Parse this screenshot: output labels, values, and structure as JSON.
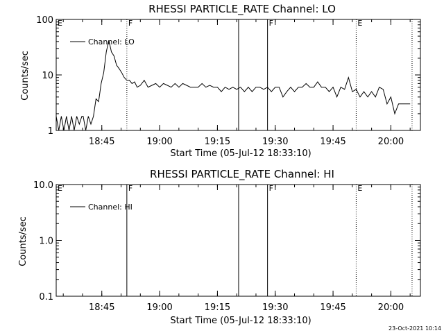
{
  "timestamp": "23-Oct-2021 10:14",
  "chart_data": [
    {
      "type": "line",
      "title": "RHESSI PARTICLE_RATE Channel: LO",
      "xlabel": "Start Time (05-Jul-12 18:33:10)",
      "ylabel": "Counts/sec",
      "yscale": "log",
      "ylim": [
        1,
        100
      ],
      "xlim": [
        "18:33:10",
        "20:07:40"
      ],
      "xticks": [
        "18:45",
        "19:00",
        "19:15",
        "19:30",
        "19:45",
        "20:00"
      ],
      "yticks": [
        "1",
        "10",
        "100"
      ],
      "legend": "top-left",
      "series": [
        {
          "name": "Channel: LO",
          "x": [
            "18:33:10",
            "18:33:50",
            "18:34:30",
            "18:35:10",
            "18:35:50",
            "18:36:30",
            "18:37:10",
            "18:37:50",
            "18:38:30",
            "18:39:10",
            "18:39:50",
            "18:40:10",
            "18:40:50",
            "18:41:30",
            "18:42:10",
            "18:42:50",
            "18:43:30",
            "18:44:10",
            "18:44:50",
            "18:45:30",
            "18:46:10",
            "18:46:50",
            "18:47:30",
            "18:48:10",
            "18:48:50",
            "18:49:30",
            "18:50:10",
            "18:50:50",
            "18:51:30",
            "18:52:10",
            "18:52:50",
            "18:53:30",
            "18:54:10",
            "18:55:00",
            "18:56:00",
            "18:57:00",
            "18:58:00",
            "18:59:00",
            "19:00:00",
            "19:01:00",
            "19:02:00",
            "19:03:00",
            "19:04:00",
            "19:05:00",
            "19:06:00",
            "19:07:00",
            "19:08:00",
            "19:09:00",
            "19:10:00",
            "19:11:00",
            "19:12:00",
            "19:13:00",
            "19:14:00",
            "19:15:00",
            "19:16:00",
            "19:17:00",
            "19:18:00",
            "19:19:00",
            "19:20:00",
            "19:21:00",
            "19:22:00",
            "19:23:00",
            "19:24:00",
            "19:25:00",
            "19:26:00",
            "19:27:00",
            "19:28:00",
            "19:29:00",
            "19:30:00",
            "19:31:00",
            "19:32:00",
            "19:33:00",
            "19:34:00",
            "19:35:00",
            "19:36:00",
            "19:37:00",
            "19:38:00",
            "19:39:00",
            "19:40:00",
            "19:41:00",
            "19:42:00",
            "19:43:00",
            "19:44:00",
            "19:45:00",
            "19:46:00",
            "19:47:00",
            "19:48:00",
            "19:49:00",
            "19:50:00",
            "19:51:00",
            "19:52:00",
            "19:53:00",
            "19:54:00",
            "19:55:00",
            "19:56:00",
            "19:57:00",
            "19:58:00",
            "19:59:00",
            "20:00:00",
            "20:01:00",
            "20:02:00",
            "20:03:00",
            "20:04:00",
            "20:05:00"
          ],
          "y": [
            1.8,
            1,
            1.8,
            1,
            1.8,
            1,
            1.8,
            1,
            1.8,
            1.3,
            1.8,
            1.8,
            1,
            1.8,
            1.3,
            1.8,
            3.7,
            3.3,
            7,
            11,
            26,
            42,
            26,
            22,
            15,
            13,
            11,
            9,
            8,
            8,
            7,
            7.5,
            6,
            6.5,
            8,
            6,
            6.5,
            7,
            6,
            7,
            6.5,
            6,
            7,
            6,
            7,
            6.5,
            6,
            6,
            6,
            7,
            6,
            6.5,
            6,
            6,
            5,
            6,
            5.5,
            6,
            5.5,
            6,
            5,
            6,
            5,
            6,
            6,
            5.5,
            6,
            5,
            6,
            6,
            4,
            5,
            6,
            5,
            6,
            6,
            7,
            6,
            6,
            7.5,
            6,
            6,
            5,
            6,
            4,
            6,
            5.5,
            9,
            5,
            5.5,
            4,
            5,
            4,
            5,
            4,
            6,
            5.5,
            3,
            4,
            2,
            3,
            3,
            3,
            3
          ]
        }
      ],
      "markers": [
        {
          "label": "E",
          "x": "18:33:10",
          "style": "solid"
        },
        {
          "label": "F",
          "x": "18:51:30",
          "style": "dotted"
        },
        {
          "label": "",
          "x": "19:20:30",
          "style": "solid"
        },
        {
          "label": "F",
          "x": "19:28:00",
          "style": "solid"
        },
        {
          "label": "E",
          "x": "19:51:00",
          "style": "dotted"
        },
        {
          "label": "",
          "x": "20:05:30",
          "style": "dotted"
        }
      ]
    },
    {
      "type": "line",
      "title": "RHESSI PARTICLE_RATE Channel: HI",
      "xlabel": "Start Time (05-Jul-12 18:33:10)",
      "ylabel": "Counts/sec",
      "yscale": "log",
      "ylim": [
        0.1,
        10
      ],
      "xlim": [
        "18:33:10",
        "20:07:40"
      ],
      "xticks": [
        "18:45",
        "19:00",
        "19:15",
        "19:30",
        "19:45",
        "20:00"
      ],
      "yticks": [
        "0.1",
        "1.0",
        "10.0"
      ],
      "legend": "top-left",
      "series": [
        {
          "name": "Channel: HI",
          "x": [],
          "y": []
        }
      ],
      "markers": [
        {
          "label": "E",
          "x": "18:33:10",
          "style": "solid"
        },
        {
          "label": "F",
          "x": "18:51:30",
          "style": "solid"
        },
        {
          "label": "",
          "x": "19:20:30",
          "style": "solid"
        },
        {
          "label": "F",
          "x": "19:28:00",
          "style": "solid"
        },
        {
          "label": "E",
          "x": "19:51:00",
          "style": "dotted"
        },
        {
          "label": "",
          "x": "20:05:30",
          "style": "dotted"
        }
      ]
    }
  ]
}
